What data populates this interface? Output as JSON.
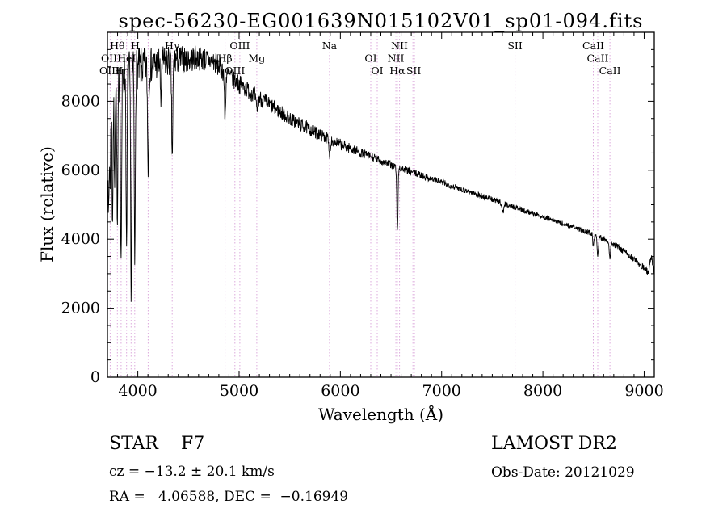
{
  "footer": {
    "class_type": "STAR    F7",
    "survey": "LAMOST DR2",
    "cz": "cz = −13.2 ± 20.1 km/s",
    "obs_date": "Obs-Date: 20121029",
    "ra_dec": "RA =   4.06588, DEC =  −0.16949"
  },
  "chart_data": {
    "type": "line",
    "title": "spec-56230-EG001639N015102V01_sp01-094.fits",
    "xlabel": "Wavelength (Å)",
    "ylabel": "Flux (relative)",
    "xlim": [
      3700,
      9100
    ],
    "ylim": [
      0,
      10000
    ],
    "xticks": [
      4000,
      5000,
      6000,
      7000,
      8000,
      9000
    ],
    "yticks": [
      0,
      2000,
      4000,
      6000,
      8000
    ],
    "x_minor": 100,
    "x_major": 1000,
    "y_minor": 500,
    "y_major": 2000,
    "grid": false,
    "legend": "none",
    "colors": {
      "spectrum": "#000000",
      "marker_line": "#ddaadd",
      "frame": "#000000"
    },
    "marked_wavelengths": [
      3727,
      3798,
      3835,
      3889,
      3934,
      3970,
      4102,
      4340,
      4861,
      4959,
      5007,
      5175,
      5893,
      6300,
      6364,
      6548,
      6563,
      6584,
      6717,
      6731,
      7725,
      8498,
      8542,
      8662
    ],
    "spectral_labels": [
      {
        "label": "Hθ",
        "wavelength": 3798,
        "row": 1
      },
      {
        "label": "H",
        "wavelength": 3975,
        "row": 1
      },
      {
        "label": "Hγ",
        "wavelength": 4340,
        "row": 1
      },
      {
        "label": "OIII",
        "wavelength": 5007,
        "row": 1
      },
      {
        "label": "Na",
        "wavelength": 5893,
        "row": 1
      },
      {
        "label": "NII",
        "wavelength": 6584,
        "row": 1
      },
      {
        "label": "SII",
        "wavelength": 7725,
        "row": 1
      },
      {
        "label": "CaII",
        "wavelength": 8498,
        "row": 1
      },
      {
        "label": "OII",
        "wavelength": 3716,
        "row": 2
      },
      {
        "label": "HeI",
        "wavelength": 3889,
        "row": 2
      },
      {
        "label": "Hβ",
        "wavelength": 4861,
        "row": 2
      },
      {
        "label": "Mg",
        "wavelength": 5175,
        "row": 2
      },
      {
        "label": "OI",
        "wavelength": 6300,
        "row": 2
      },
      {
        "label": "NII",
        "wavelength": 6548,
        "row": 2
      },
      {
        "label": "CaII",
        "wavelength": 8542,
        "row": 2
      },
      {
        "label": "OIII",
        "wavelength": 3720,
        "row": 3
      },
      {
        "label": "Hη",
        "wavelength": 3840,
        "row": 3
      },
      {
        "label": "OIII",
        "wavelength": 4959,
        "row": 3
      },
      {
        "label": "OI",
        "wavelength": 6364,
        "row": 3
      },
      {
        "label": "Hα",
        "wavelength": 6563,
        "row": 3
      },
      {
        "label": "SII",
        "wavelength": 6724,
        "row": 3
      },
      {
        "label": "CaII",
        "wavelength": 8662,
        "row": 3
      }
    ],
    "series": [
      {
        "name": "flux",
        "seed": 7,
        "step": 3,
        "continuum": [
          [
            3705,
            7700
          ],
          [
            3750,
            8250
          ],
          [
            3820,
            8600
          ],
          [
            3900,
            8850
          ],
          [
            4000,
            8950
          ],
          [
            4200,
            9100
          ],
          [
            4400,
            9200
          ],
          [
            4600,
            9250
          ],
          [
            4750,
            9150
          ],
          [
            4900,
            8750
          ],
          [
            5000,
            8500
          ],
          [
            5250,
            8000
          ],
          [
            5500,
            7500
          ],
          [
            5750,
            7100
          ],
          [
            6000,
            6750
          ],
          [
            6250,
            6450
          ],
          [
            6500,
            6150
          ],
          [
            6750,
            5900
          ],
          [
            7000,
            5650
          ],
          [
            7250,
            5400
          ],
          [
            7500,
            5150
          ],
          [
            7750,
            4900
          ],
          [
            8000,
            4650
          ],
          [
            8250,
            4400
          ],
          [
            8500,
            4150
          ],
          [
            8650,
            3950
          ],
          [
            8800,
            3650
          ],
          [
            8950,
            3300
          ],
          [
            9040,
            3050
          ],
          [
            9065,
            3500
          ],
          [
            9100,
            3100
          ]
        ],
        "absorption_lines": [
          {
            "wavelength": 3712,
            "depth": 0.4,
            "sigma": 5
          },
          {
            "wavelength": 3727,
            "depth": 0.28,
            "sigma": 5
          },
          {
            "wavelength": 3750,
            "depth": 0.45,
            "sigma": 5
          },
          {
            "wavelength": 3770,
            "depth": 0.35,
            "sigma": 4
          },
          {
            "wavelength": 3798,
            "depth": 0.5,
            "sigma": 5
          },
          {
            "wavelength": 3835,
            "depth": 0.62,
            "sigma": 5
          },
          {
            "wavelength": 3889,
            "depth": 0.6,
            "sigma": 5
          },
          {
            "wavelength": 3934,
            "depth": 0.77,
            "sigma": 5
          },
          {
            "wavelength": 3970,
            "depth": 0.65,
            "sigma": 5
          },
          {
            "wavelength": 4102,
            "depth": 0.33,
            "sigma": 6
          },
          {
            "wavelength": 4227,
            "depth": 0.15,
            "sigma": 4
          },
          {
            "wavelength": 4340,
            "depth": 0.3,
            "sigma": 6
          },
          {
            "wavelength": 4861,
            "depth": 0.16,
            "sigma": 6
          },
          {
            "wavelength": 5175,
            "depth": 0.05,
            "sigma": 9
          },
          {
            "wavelength": 5893,
            "depth": 0.07,
            "sigma": 7
          },
          {
            "wavelength": 6563,
            "depth": 0.3,
            "sigma": 6
          },
          {
            "wavelength": 7605,
            "depth": 0.05,
            "sigma": 9
          },
          {
            "wavelength": 8498,
            "depth": 0.08,
            "sigma": 6
          },
          {
            "wavelength": 8542,
            "depth": 0.14,
            "sigma": 6
          },
          {
            "wavelength": 8662,
            "depth": 0.12,
            "sigma": 6
          }
        ],
        "noise_profile": [
          [
            3700,
            620
          ],
          [
            3820,
            650
          ],
          [
            3960,
            640
          ],
          [
            4120,
            520
          ],
          [
            4300,
            460
          ],
          [
            4550,
            380
          ],
          [
            4800,
            320
          ],
          [
            5000,
            270
          ],
          [
            5300,
            230
          ],
          [
            5600,
            200
          ],
          [
            5900,
            170
          ],
          [
            6200,
            140
          ],
          [
            6500,
            115
          ],
          [
            6800,
            100
          ],
          [
            7100,
            90
          ],
          [
            7500,
            80
          ],
          [
            8000,
            72
          ],
          [
            8400,
            75
          ],
          [
            8700,
            85
          ],
          [
            9000,
            95
          ],
          [
            9100,
            130
          ]
        ]
      }
    ]
  }
}
